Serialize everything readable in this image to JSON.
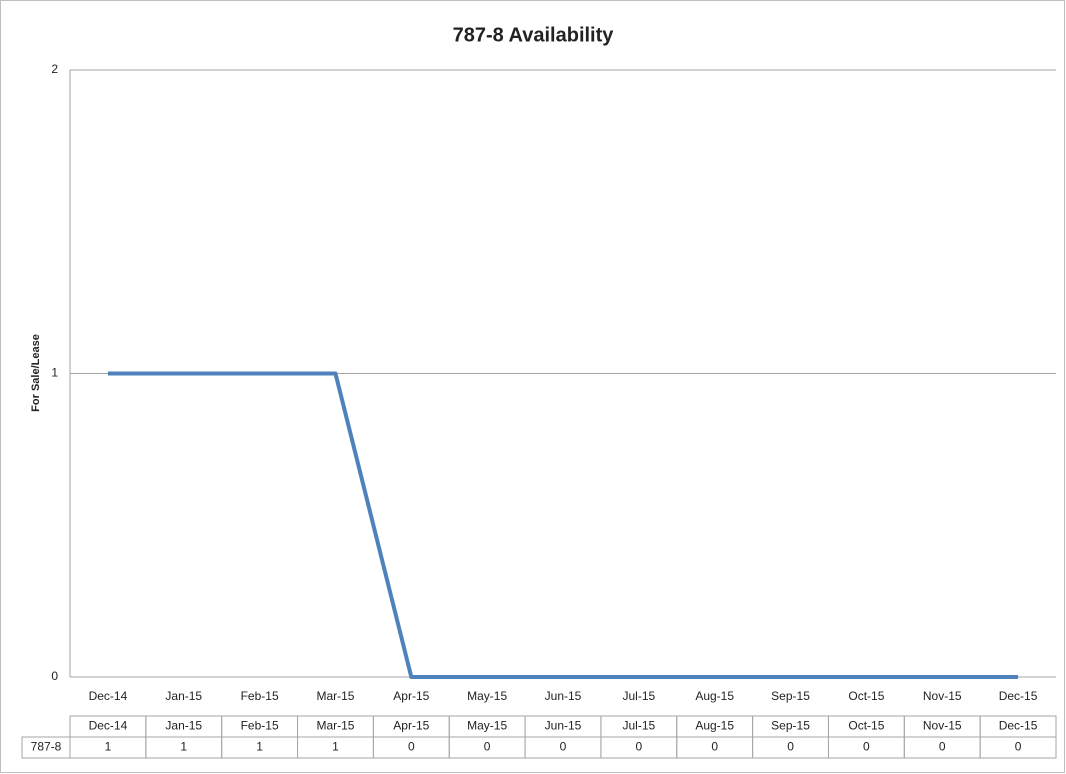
{
  "chart_data": {
    "type": "line",
    "title": "787-8 Availability",
    "y_label": "For Sale/Lease",
    "categories": [
      "Dec-14",
      "Jan-15",
      "Feb-15",
      "Mar-15",
      "Apr-15",
      "May-15",
      "Jun-15",
      "Jul-15",
      "Aug-15",
      "Sep-15",
      "Oct-15",
      "Nov-15",
      "Dec-15"
    ],
    "series": [
      {
        "name": "787-8",
        "color": "#4f81bd",
        "values": [
          1,
          1,
          1,
          1,
          0,
          0,
          0,
          0,
          0,
          0,
          0,
          0,
          0
        ]
      }
    ],
    "ylim": [
      0,
      2
    ],
    "yticks": [
      0,
      1,
      2
    ],
    "grid": true
  }
}
